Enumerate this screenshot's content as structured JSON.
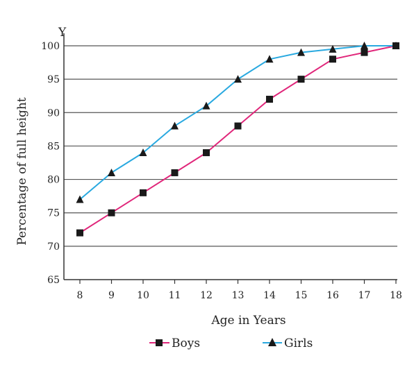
{
  "chart_data": {
    "type": "line",
    "title": "",
    "xlabel": "Age in Years",
    "ylabel": "Percentage of full height",
    "y_axis_letter": "Y",
    "x": [
      8,
      9,
      10,
      11,
      12,
      13,
      14,
      15,
      16,
      17,
      18
    ],
    "xlim": [
      8,
      18
    ],
    "ylim": [
      65,
      100
    ],
    "yticks": [
      65,
      70,
      75,
      80,
      85,
      90,
      95,
      100
    ],
    "grid": true,
    "legend_placement": "bottom",
    "series": [
      {
        "name": "Boys",
        "color": "#e0267a",
        "marker": "square",
        "values": [
          72,
          75,
          78,
          81,
          84,
          88,
          92,
          95,
          98,
          99,
          100
        ]
      },
      {
        "name": "Girls",
        "color": "#29a9e0",
        "marker": "triangle",
        "values": [
          77,
          81,
          84,
          88,
          91,
          95,
          98,
          99,
          99.5,
          100,
          100
        ]
      }
    ]
  }
}
